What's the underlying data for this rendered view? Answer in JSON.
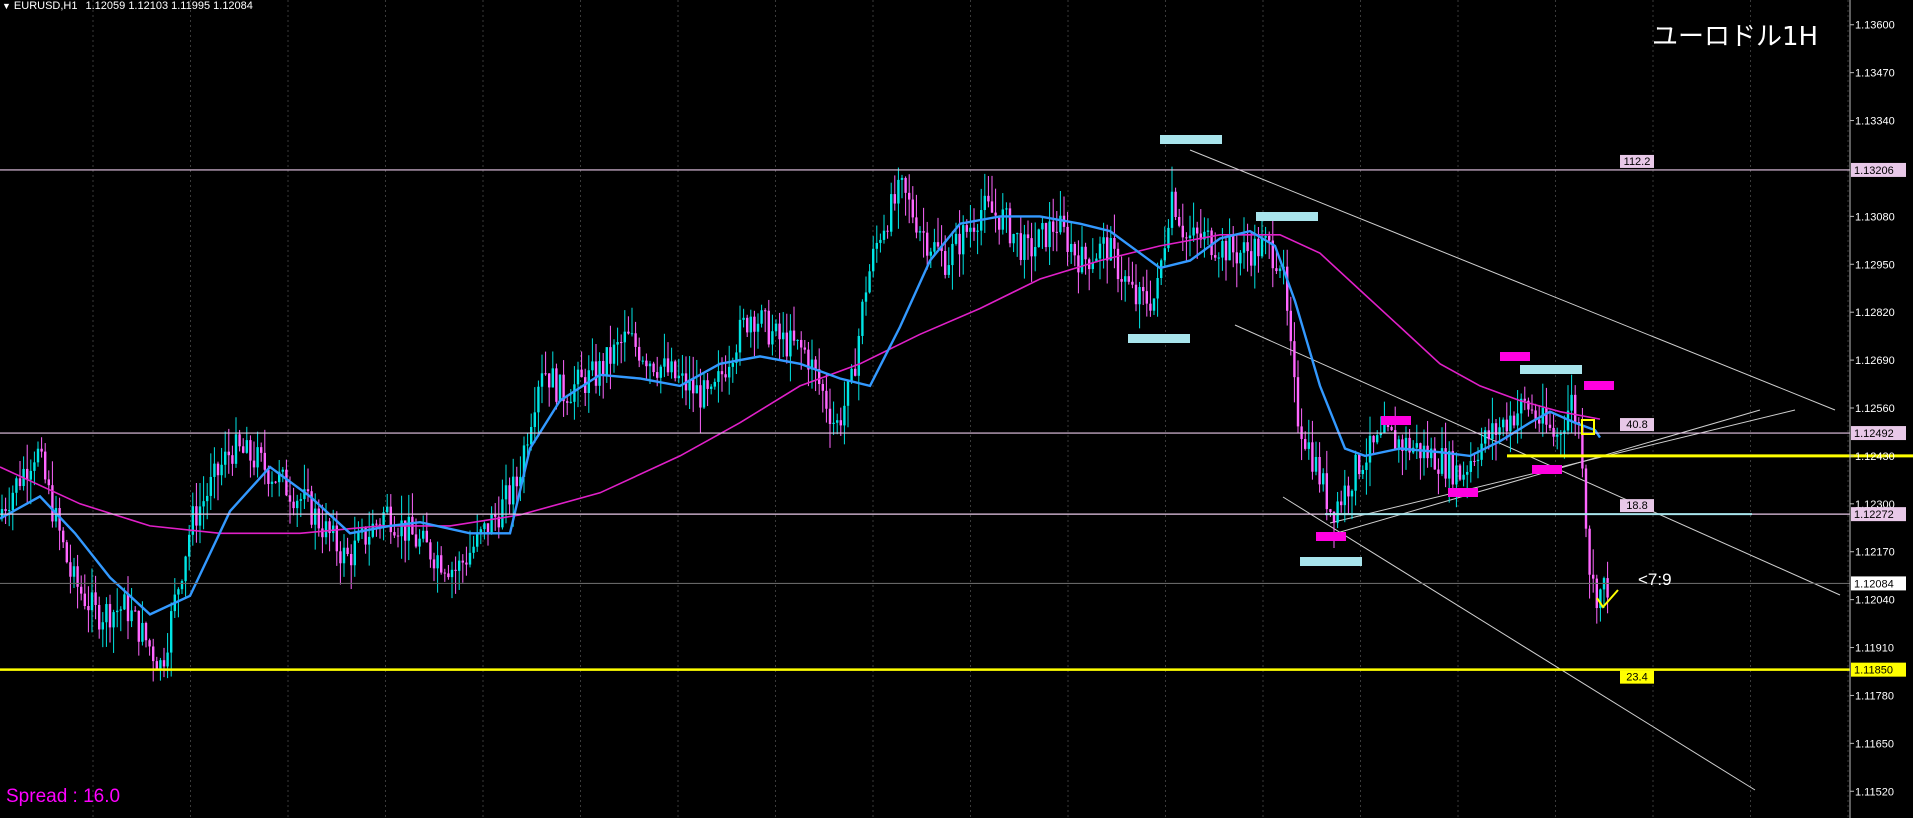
{
  "header": {
    "symbol": "EURUSD,H1",
    "values": "1.12059 1.12103 1.11995 1.12084"
  },
  "title": "ユーロドル1H",
  "spread": "Spread : 16.0",
  "note": "<7:9",
  "colors": {
    "background": "#000000",
    "bull_candle": "#00e5e5",
    "bear_candle": "#ff66ff",
    "fast_ma": "#3399ff",
    "slow_ma": "#e020c8",
    "horizontal_line": "#e8c8e8",
    "yellow_line": "#ffff00",
    "marker_cyan": "#a8e4ec",
    "marker_magenta": "#ff00e0"
  },
  "chart_data": {
    "type": "candlestick",
    "ylim": [
      1.1148,
      1.1364
    ],
    "y_ticks": [
      "1.13600",
      "1.13470",
      "1.13340",
      "1.13206",
      "1.13080",
      "1.12950",
      "1.12820",
      "1.12690",
      "1.12560",
      "1.12492",
      "1.12430",
      "1.12300",
      "1.12272",
      "1.12170",
      "1.12084",
      "1.12040",
      "1.11910",
      "1.11850",
      "1.11780",
      "1.11650",
      "1.11520"
    ],
    "price_path": [
      [
        0,
        1.1226
      ],
      [
        40,
        1.1245
      ],
      [
        75,
        1.121
      ],
      [
        100,
        1.12
      ],
      [
        130,
        1.1202
      ],
      [
        165,
        1.1186
      ],
      [
        195,
        1.1225
      ],
      [
        235,
        1.1245
      ],
      [
        260,
        1.1242
      ],
      [
        310,
        1.123
      ],
      [
        350,
        1.1215
      ],
      [
        390,
        1.1228
      ],
      [
        420,
        1.122
      ],
      [
        460,
        1.1212
      ],
      [
        495,
        1.1225
      ],
      [
        520,
        1.1235
      ],
      [
        545,
        1.1268
      ],
      [
        565,
        1.126
      ],
      [
        600,
        1.1265
      ],
      [
        630,
        1.1275
      ],
      [
        660,
        1.1268
      ],
      [
        690,
        1.1262
      ],
      [
        715,
        1.1258
      ],
      [
        735,
        1.1272
      ],
      [
        755,
        1.1282
      ],
      [
        780,
        1.1275
      ],
      [
        810,
        1.1271
      ],
      [
        840,
        1.1251
      ],
      [
        855,
        1.1262
      ],
      [
        870,
        1.129
      ],
      [
        885,
        1.1305
      ],
      [
        905,
        1.1315
      ],
      [
        930,
        1.1302
      ],
      [
        950,
        1.1296
      ],
      [
        985,
        1.131
      ],
      [
        1005,
        1.1308
      ],
      [
        1030,
        1.1298
      ],
      [
        1060,
        1.1306
      ],
      [
        1085,
        1.1296
      ],
      [
        1110,
        1.13
      ],
      [
        1140,
        1.1285
      ],
      [
        1160,
        1.1286
      ],
      [
        1175,
        1.1315
      ],
      [
        1190,
        1.1302
      ],
      [
        1210,
        1.1302
      ],
      [
        1240,
        1.1298
      ],
      [
        1270,
        1.13
      ],
      [
        1285,
        1.1296
      ],
      [
        1300,
        1.1255
      ],
      [
        1320,
        1.124
      ],
      [
        1335,
        1.1228
      ],
      [
        1345,
        1.1232
      ],
      [
        1365,
        1.1242
      ],
      [
        1390,
        1.1248
      ],
      [
        1420,
        1.1245
      ],
      [
        1445,
        1.1242
      ],
      [
        1465,
        1.1238
      ],
      [
        1480,
        1.1245
      ],
      [
        1500,
        1.125
      ],
      [
        1515,
        1.1254
      ],
      [
        1530,
        1.1257
      ],
      [
        1545,
        1.1252
      ],
      [
        1560,
        1.1248
      ],
      [
        1575,
        1.1258
      ],
      [
        1585,
        1.1248
      ],
      [
        1592,
        1.1215
      ],
      [
        1598,
        1.1206
      ],
      [
        1605,
        1.1206
      ],
      [
        1610,
        1.1208
      ]
    ],
    "fast_ma_path": [
      [
        0,
        1.1226
      ],
      [
        40,
        1.1232
      ],
      [
        75,
        1.1222
      ],
      [
        110,
        1.121
      ],
      [
        150,
        1.12
      ],
      [
        190,
        1.1205
      ],
      [
        230,
        1.1228
      ],
      [
        270,
        1.124
      ],
      [
        310,
        1.1232
      ],
      [
        350,
        1.1222
      ],
      [
        390,
        1.1224
      ],
      [
        420,
        1.1225
      ],
      [
        470,
        1.1222
      ],
      [
        510,
        1.1222
      ],
      [
        530,
        1.1245
      ],
      [
        560,
        1.1258
      ],
      [
        600,
        1.1265
      ],
      [
        640,
        1.1264
      ],
      [
        680,
        1.1262
      ],
      [
        720,
        1.1268
      ],
      [
        760,
        1.127
      ],
      [
        800,
        1.1268
      ],
      [
        840,
        1.1264
      ],
      [
        870,
        1.1262
      ],
      [
        900,
        1.1278
      ],
      [
        930,
        1.1296
      ],
      [
        960,
        1.1306
      ],
      [
        1000,
        1.1308
      ],
      [
        1040,
        1.1308
      ],
      [
        1080,
        1.1306
      ],
      [
        1110,
        1.1304
      ],
      [
        1140,
        1.1298
      ],
      [
        1160,
        1.1294
      ],
      [
        1190,
        1.1296
      ],
      [
        1220,
        1.1302
      ],
      [
        1250,
        1.1304
      ],
      [
        1275,
        1.13
      ],
      [
        1295,
        1.1285
      ],
      [
        1320,
        1.1262
      ],
      [
        1345,
        1.1245
      ],
      [
        1365,
        1.1243
      ],
      [
        1400,
        1.1245
      ],
      [
        1440,
        1.1244
      ],
      [
        1470,
        1.1243
      ],
      [
        1500,
        1.1247
      ],
      [
        1530,
        1.1252
      ],
      [
        1550,
        1.1255
      ],
      [
        1575,
        1.1252
      ],
      [
        1595,
        1.125
      ],
      [
        1600,
        1.1248
      ]
    ],
    "slow_ma_path": [
      [
        0,
        1.124
      ],
      [
        80,
        1.123
      ],
      [
        150,
        1.1224
      ],
      [
        220,
        1.1222
      ],
      [
        300,
        1.1222
      ],
      [
        380,
        1.1224
      ],
      [
        450,
        1.1224
      ],
      [
        520,
        1.1227
      ],
      [
        600,
        1.1233
      ],
      [
        680,
        1.1243
      ],
      [
        740,
        1.1252
      ],
      [
        800,
        1.1262
      ],
      [
        860,
        1.1268
      ],
      [
        920,
        1.1276
      ],
      [
        980,
        1.1283
      ],
      [
        1040,
        1.1291
      ],
      [
        1100,
        1.1296
      ],
      [
        1160,
        1.13
      ],
      [
        1220,
        1.1303
      ],
      [
        1280,
        1.1303
      ],
      [
        1320,
        1.1298
      ],
      [
        1360,
        1.1288
      ],
      [
        1400,
        1.1278
      ],
      [
        1440,
        1.1268
      ],
      [
        1480,
        1.1262
      ],
      [
        1520,
        1.1258
      ],
      [
        1560,
        1.1255
      ],
      [
        1600,
        1.1253
      ]
    ],
    "horizontal_levels": [
      {
        "price": 1.13206,
        "label": "112.2",
        "tag": "1.13206",
        "color": "#e8c8e8"
      },
      {
        "price": 1.12492,
        "label": "40.8",
        "tag": "1.12492",
        "color": "#e8c8e8"
      },
      {
        "price": 1.12272,
        "label": "18.8",
        "tag": "1.12272",
        "color": "#e8c8e8"
      },
      {
        "price": 1.12084,
        "label": "",
        "tag": "1.12084",
        "color": "#666666"
      },
      {
        "price": 1.1185,
        "label": "23.4",
        "tag": "1.11850",
        "color": "#ffff00"
      }
    ]
  }
}
